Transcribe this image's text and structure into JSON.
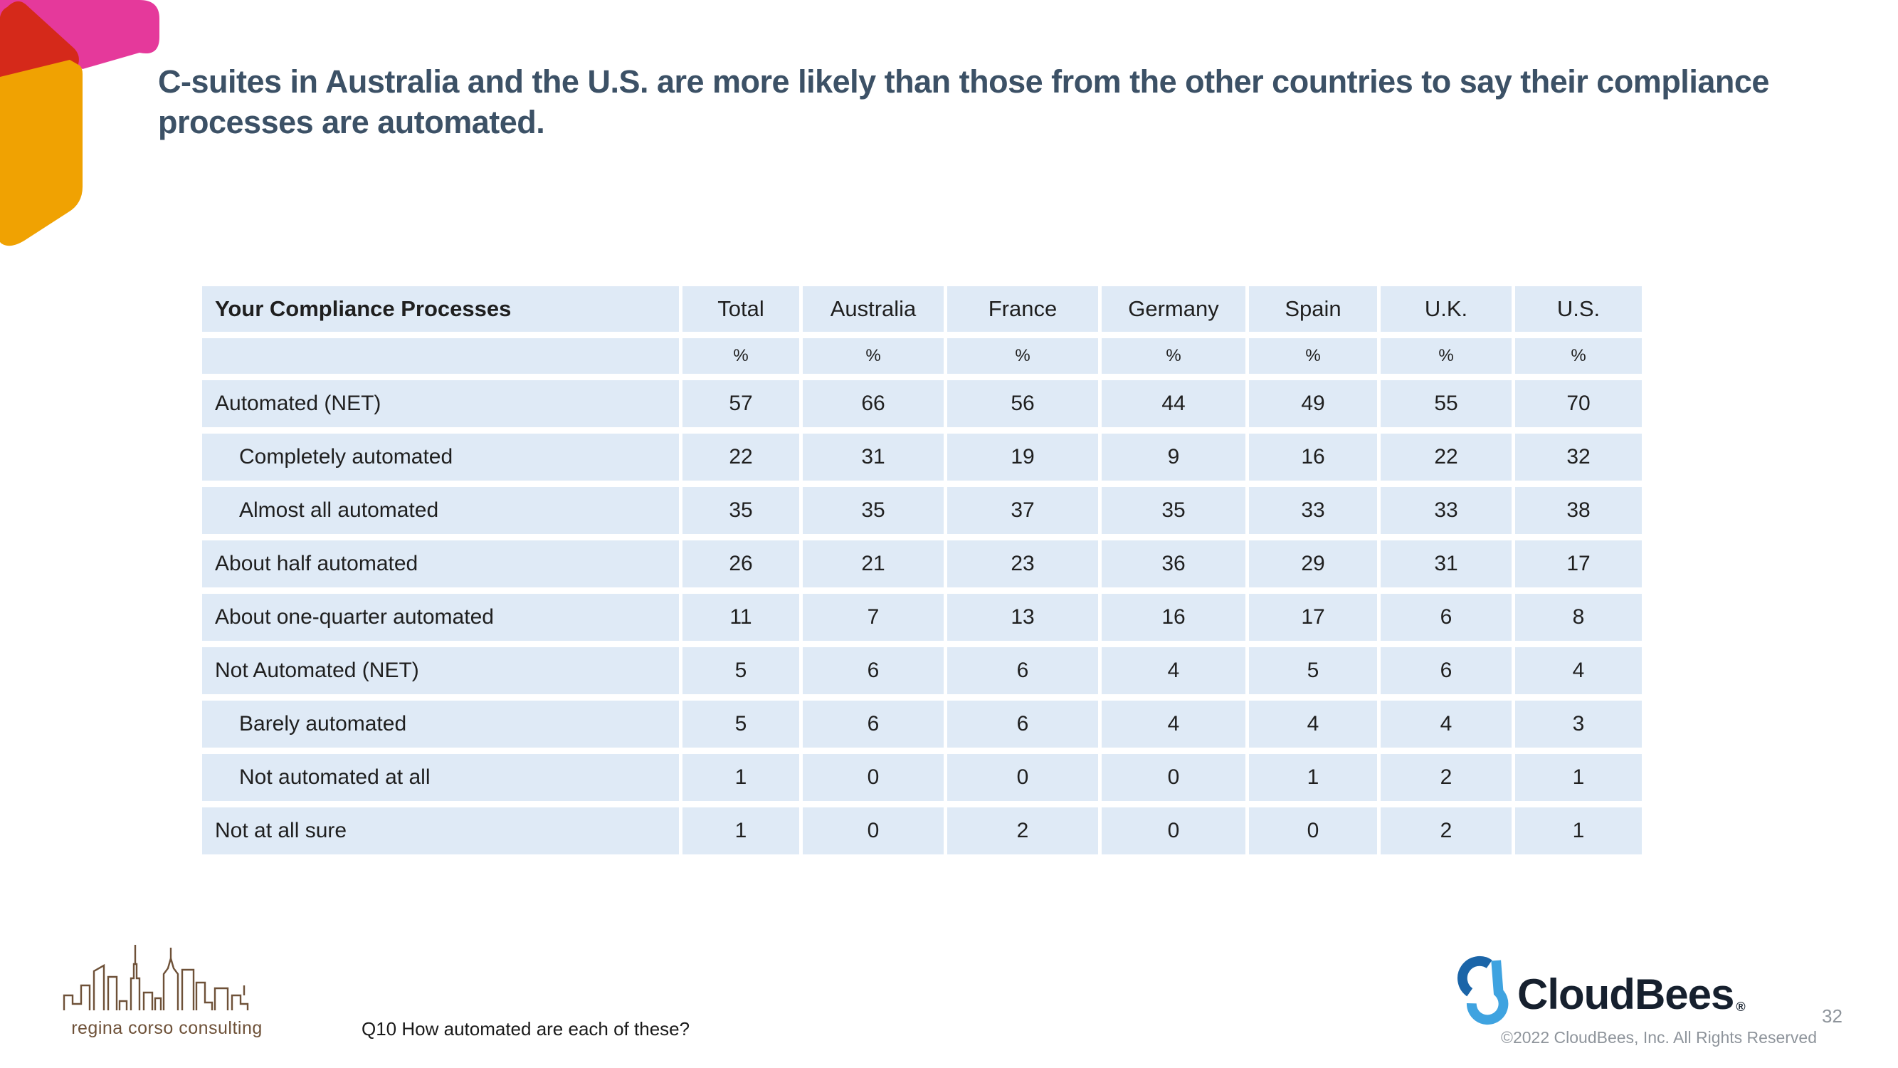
{
  "slide": {
    "title": "C-suites in Australia and the U.S. are more likely than those from the other countries to say their compliance processes are automated.",
    "footnote": "Q10 How automated are each of these?",
    "page_number": "32",
    "copyright": "©2022 CloudBees, Inc. All Rights Reserved"
  },
  "logos": {
    "cloudbees_wordmark": "CloudBees",
    "cloudbees_registered_mark": "®",
    "consulting_text": "regina corso consulting"
  },
  "colors": {
    "title_text": "#3C5166",
    "table_cell_bg": "#DFEAF6",
    "corner_pink": "#E5399B",
    "corner_red": "#D5291A",
    "corner_amber": "#F0A202",
    "cloudbees_dark_blue": "#1B65A8",
    "cloudbees_light_blue": "#3FA3E0",
    "wordmark_navy": "#16202E",
    "muted_gray": "#8E949B",
    "consulting_brown": "#6E5138"
  },
  "chart_data": {
    "type": "table",
    "title": "Your Compliance Processes",
    "columns": [
      "Total",
      "Australia",
      "France",
      "Germany",
      "Spain",
      "U.K.",
      "U.S."
    ],
    "unit": "%",
    "rows": [
      {
        "label": "Automated (NET)",
        "values": [
          57,
          66,
          56,
          44,
          49,
          55,
          70
        ]
      },
      {
        "label": "Completely automated",
        "values": [
          22,
          31,
          19,
          9,
          16,
          22,
          32
        ]
      },
      {
        "label": "Almost all automated",
        "values": [
          35,
          35,
          37,
          35,
          33,
          33,
          38
        ]
      },
      {
        "label": "About half automated",
        "values": [
          26,
          21,
          23,
          36,
          29,
          31,
          17
        ]
      },
      {
        "label": "About one-quarter automated",
        "values": [
          11,
          7,
          13,
          16,
          17,
          6,
          8
        ]
      },
      {
        "label": "Not Automated (NET)",
        "values": [
          5,
          6,
          6,
          4,
          5,
          6,
          4
        ]
      },
      {
        "label": "Barely automated",
        "values": [
          5,
          6,
          6,
          4,
          4,
          4,
          3
        ]
      },
      {
        "label": "Not automated at all",
        "values": [
          1,
          0,
          0,
          0,
          1,
          2,
          1
        ]
      },
      {
        "label": "Not at all sure",
        "values": [
          1,
          0,
          2,
          0,
          0,
          2,
          1
        ]
      }
    ]
  },
  "table": {
    "header": [
      "Your Compliance Processes",
      "Total",
      "Australia",
      "France",
      "Germany",
      "Spain",
      "U.K.",
      "U.S."
    ],
    "unit_row": [
      "",
      "%",
      "%",
      "%",
      "%",
      "%",
      "%",
      "%"
    ],
    "rows": [
      {
        "label": "Automated (NET)",
        "indent": false,
        "values": [
          "57",
          "66",
          "56",
          "44",
          "49",
          "55",
          "70"
        ]
      },
      {
        "label": "Completely automated",
        "indent": true,
        "values": [
          "22",
          "31",
          "19",
          "9",
          "16",
          "22",
          "32"
        ]
      },
      {
        "label": "Almost all automated",
        "indent": true,
        "values": [
          "35",
          "35",
          "37",
          "35",
          "33",
          "33",
          "38"
        ]
      },
      {
        "label": "About half automated",
        "indent": false,
        "values": [
          "26",
          "21",
          "23",
          "36",
          "29",
          "31",
          "17"
        ]
      },
      {
        "label": "About one-quarter automated",
        "indent": false,
        "values": [
          "11",
          "7",
          "13",
          "16",
          "17",
          "6",
          "8"
        ]
      },
      {
        "label": "Not Automated (NET)",
        "indent": false,
        "values": [
          "5",
          "6",
          "6",
          "4",
          "5",
          "6",
          "4"
        ]
      },
      {
        "label": "Barely automated",
        "indent": true,
        "values": [
          "5",
          "6",
          "6",
          "4",
          "4",
          "4",
          "3"
        ]
      },
      {
        "label": "Not automated at all",
        "indent": true,
        "values": [
          "1",
          "0",
          "0",
          "0",
          "1",
          "2",
          "1"
        ]
      },
      {
        "label": "Not at all sure",
        "indent": false,
        "values": [
          "1",
          "0",
          "2",
          "0",
          "0",
          "2",
          "1"
        ]
      }
    ]
  }
}
